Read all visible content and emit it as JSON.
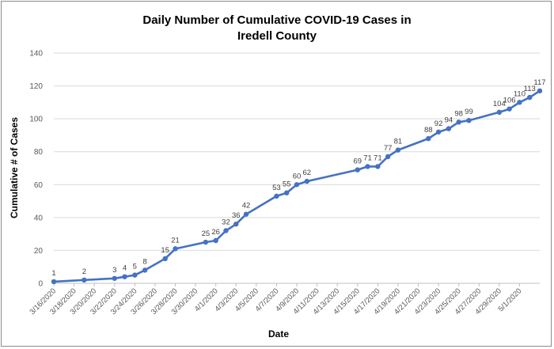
{
  "chart_data": {
    "type": "line",
    "title_lines": [
      "Daily Number of Cumulative COVID-19 Cases in",
      "Iredell County"
    ],
    "xlabel": "Date",
    "ylabel": "Cumulative # of Cases",
    "ylim": [
      0,
      140
    ],
    "yticks": [
      0,
      20,
      40,
      60,
      80,
      100,
      120,
      140
    ],
    "grid": "horizontal",
    "legend": "none",
    "line_color": "#4472C4",
    "x_tick_labels": [
      "3/16/2020",
      "3/18/2020",
      "3/20/2020",
      "3/22/2020",
      "3/24/2020",
      "3/26/2020",
      "3/28/2020",
      "3/30/2020",
      "4/1/2020",
      "4/3/2020",
      "4/5/2020",
      "4/7/2020",
      "4/9/2020",
      "4/11/2020",
      "4/13/2020",
      "4/15/2020",
      "4/17/2020",
      "4/19/2020",
      "4/21/2020",
      "4/23/2020",
      "4/25/2020",
      "4/27/2020",
      "4/29/2020",
      "5/1/2020"
    ],
    "points": [
      {
        "x": "3/16/2020",
        "y": 1
      },
      {
        "x": "3/19/2020",
        "y": 2
      },
      {
        "x": "3/22/2020",
        "y": 3
      },
      {
        "x": "3/23/2020",
        "y": 4
      },
      {
        "x": "3/24/2020",
        "y": 5
      },
      {
        "x": "3/25/2020",
        "y": 8
      },
      {
        "x": "3/27/2020",
        "y": 15
      },
      {
        "x": "3/28/2020",
        "y": 21
      },
      {
        "x": "3/31/2020",
        "y": 25
      },
      {
        "x": "4/1/2020",
        "y": 26
      },
      {
        "x": "4/2/2020",
        "y": 32
      },
      {
        "x": "4/3/2020",
        "y": 36
      },
      {
        "x": "4/4/2020",
        "y": 42
      },
      {
        "x": "4/7/2020",
        "y": 53
      },
      {
        "x": "4/8/2020",
        "y": 55
      },
      {
        "x": "4/9/2020",
        "y": 60
      },
      {
        "x": "4/10/2020",
        "y": 62
      },
      {
        "x": "4/15/2020",
        "y": 69
      },
      {
        "x": "4/16/2020",
        "y": 71
      },
      {
        "x": "4/17/2020",
        "y": 71
      },
      {
        "x": "4/18/2020",
        "y": 77
      },
      {
        "x": "4/19/2020",
        "y": 81
      },
      {
        "x": "4/22/2020",
        "y": 88
      },
      {
        "x": "4/23/2020",
        "y": 92
      },
      {
        "x": "4/24/2020",
        "y": 94
      },
      {
        "x": "4/25/2020",
        "y": 98
      },
      {
        "x": "4/26/2020",
        "y": 99
      },
      {
        "x": "4/29/2020",
        "y": 104
      },
      {
        "x": "4/30/2020",
        "y": 106
      },
      {
        "x": "5/1/2020",
        "y": 110
      },
      {
        "x": "5/2/2020",
        "y": 113
      },
      {
        "x": "5/3/2020",
        "y": 117
      }
    ]
  }
}
